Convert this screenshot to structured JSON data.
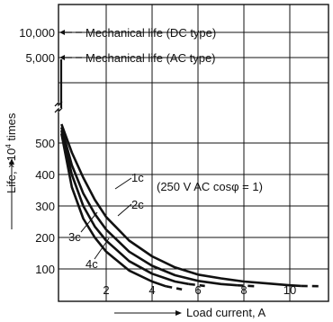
{
  "chart_data": {
    "type": "line",
    "title": "",
    "xlabel": "Load current, A",
    "ylabel_main": "Life, ×10",
    "ylabel_exp": "4",
    "ylabel_tail": " times",
    "xlim": [
      0,
      12
    ],
    "ylim_lower": [
      0,
      600
    ],
    "x_ticks": [
      "2",
      "4",
      "6",
      "8",
      "10"
    ],
    "y_ticks_lower": [
      "100",
      "200",
      "300",
      "400",
      "500"
    ],
    "y_ticks_upper": [
      "5,000",
      "10,000"
    ],
    "annotations": {
      "mech_dc": "Mechanical life (DC type)",
      "mech_ac": "Mechanical life (AC type)",
      "condition": "(250 V AC cosφ = 1)"
    },
    "mechanical_life": [
      {
        "name": "Mechanical life (DC type)",
        "value": 10000
      },
      {
        "name": "Mechanical life (AC type)",
        "value": 5000
      }
    ],
    "series": [
      {
        "name": "1c",
        "x": [
          0.05,
          0.5,
          1,
          1.5,
          2,
          3,
          4,
          5,
          6,
          7,
          8,
          9,
          10,
          10.5
        ],
        "y": [
          560,
          470,
          390,
          320,
          265,
          190,
          140,
          105,
          82,
          70,
          60,
          54,
          48,
          46
        ],
        "dash_from_x": 10.5,
        "dash_to": [
          11.3,
          45
        ]
      },
      {
        "name": "2c",
        "x": [
          0.05,
          0.5,
          1,
          1.5,
          2,
          3,
          4,
          5,
          6,
          7,
          7.7
        ],
        "y": [
          550,
          430,
          340,
          275,
          225,
          155,
          110,
          80,
          62,
          52,
          48
        ],
        "dash_from_x": 7.7,
        "dash_to": [
          8.5,
          45
        ]
      },
      {
        "name": "3c",
        "x": [
          0.05,
          0.5,
          1,
          1.5,
          2,
          3,
          4,
          5,
          5.6
        ],
        "y": [
          540,
          400,
          300,
          235,
          190,
          125,
          85,
          60,
          52
        ],
        "dash_from_x": 5.6,
        "dash_to": [
          6.3,
          46
        ]
      },
      {
        "name": "4c",
        "x": [
          0.05,
          0.5,
          1,
          1.5,
          2,
          3,
          4,
          4.6
        ],
        "y": [
          530,
          360,
          260,
          200,
          155,
          95,
          60,
          45
        ],
        "dash_from_x": 4.6,
        "dash_to": [
          5.3,
          35
        ]
      }
    ],
    "grid": true,
    "legend": "none"
  }
}
